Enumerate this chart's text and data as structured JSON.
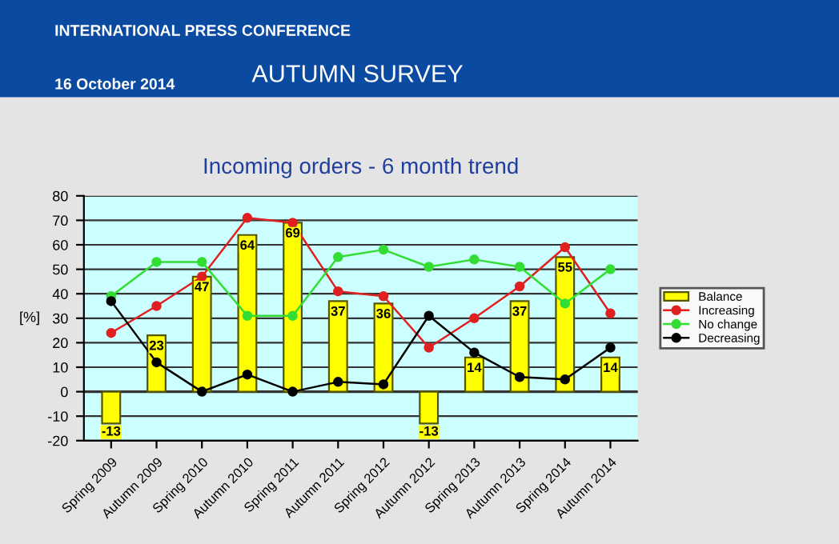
{
  "chart_data": {
    "type": "bar",
    "title": "Incoming orders - 6 month trend",
    "ylabel": "[%]",
    "annotations": [
      "INTERNATIONAL PRESS CONFERENCE",
      "16 October 2014",
      "AUTUMN SURVEY"
    ],
    "categories": [
      "Spring 2009",
      "Autumn 2009",
      "Spring 2010",
      "Autumn 2010",
      "Spring 2011",
      "Autumn 2011",
      "Spring 2012",
      "Autumn 2012",
      "Spring 2013",
      "Autumn 2013",
      "Spring 2014",
      "Autumn 2014"
    ],
    "series": [
      {
        "name": "Balance",
        "color": "#ffff00",
        "data_labels": true,
        "values": [
          -13,
          23,
          47,
          64,
          69,
          37,
          36,
          -13,
          14,
          37,
          55,
          14
        ]
      },
      {
        "name": "Increasing",
        "type": "line",
        "color": "#e02020",
        "marker": "circle",
        "values": [
          24,
          35,
          47,
          71,
          69,
          41,
          39,
          18,
          30,
          43,
          59,
          32
        ]
      },
      {
        "name": "No change",
        "type": "line",
        "color": "#33dd33",
        "marker": "circle",
        "values": [
          39,
          53,
          53,
          31,
          31,
          55,
          58,
          51,
          54,
          51,
          36,
          50
        ]
      },
      {
        "name": "Decreasing",
        "type": "line",
        "color": "#000000",
        "marker": "circle",
        "values": [
          37,
          12,
          0,
          7,
          0,
          4,
          3,
          31,
          16,
          6,
          5,
          18
        ]
      }
    ],
    "ylim": [
      -20,
      80
    ],
    "yticks": [
      -20,
      -10,
      0,
      10,
      20,
      30,
      40,
      50,
      60,
      70,
      80
    ],
    "grid": "y",
    "legend": "right"
  }
}
